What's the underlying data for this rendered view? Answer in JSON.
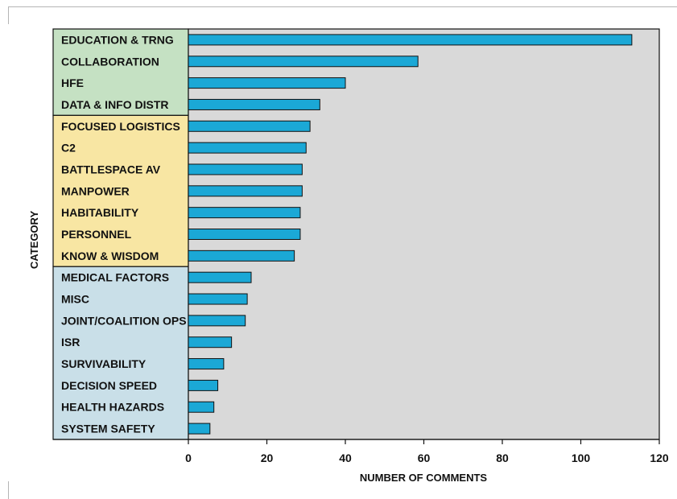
{
  "chart_data": {
    "type": "bar",
    "orientation": "horizontal",
    "xlabel": "NUMBER OF COMMENTS",
    "ylabel": "CATEGORY",
    "xlim": [
      0,
      120
    ],
    "x_ticks": [
      0,
      20,
      40,
      60,
      80,
      100,
      120
    ],
    "grid": false,
    "categories": [
      "EDUCATION & TRNG",
      "COLLABORATION",
      "HFE",
      "DATA & INFO DISTR",
      "FOCUSED LOGISTICS",
      "C2",
      "BATTLESPACE AV",
      "MANPOWER",
      "HABITABILITY",
      "PERSONNEL",
      "KNOW & WISDOM",
      "MEDICAL FACTORS",
      "MISC",
      "JOINT/COALITION OPS",
      "ISR",
      "SURVIVABILITY",
      "DECISION SPEED",
      "HEALTH HAZARDS",
      "SYSTEM SAFETY"
    ],
    "values": [
      113,
      58.5,
      40,
      33.5,
      31,
      30,
      29,
      29,
      28.5,
      28.5,
      27,
      16,
      15,
      14.5,
      11,
      9,
      7.5,
      6.5,
      5.5
    ],
    "groups": [
      {
        "start": 0,
        "end": 3,
        "color": "#c5e1c3"
      },
      {
        "start": 4,
        "end": 10,
        "color": "#f8e6a3"
      },
      {
        "start": 11,
        "end": 18,
        "color": "#c9dfe8"
      }
    ],
    "colors": {
      "bar_fill": "#1ba8d6",
      "bar_stroke": "#111111",
      "plot_background": "#d9d9d9"
    }
  }
}
